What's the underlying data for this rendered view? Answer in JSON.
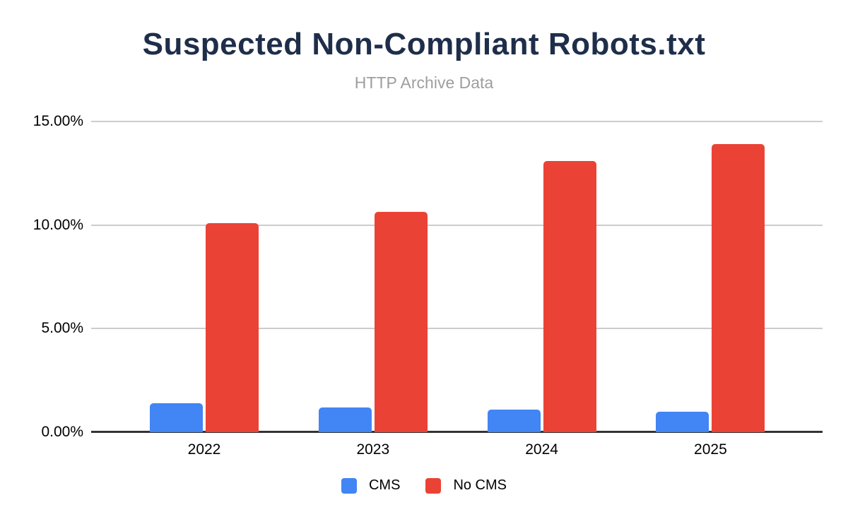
{
  "chart_data": {
    "type": "bar",
    "title": "Suspected Non-Compliant Robots.txt",
    "subtitle": "HTTP Archive Data",
    "categories": [
      "2022",
      "2023",
      "2024",
      "2025"
    ],
    "series": [
      {
        "name": "CMS",
        "color": "#4285F4",
        "values": [
          1.4,
          1.2,
          1.1,
          1.0
        ]
      },
      {
        "name": "No CMS",
        "color": "#EA4335",
        "values": [
          10.1,
          10.65,
          13.1,
          13.9
        ]
      }
    ],
    "ylabel": "",
    "xlabel": "",
    "ylim": [
      0,
      15
    ],
    "yticks": [
      {
        "value": 0,
        "label": "0.00%"
      },
      {
        "value": 5,
        "label": "5.00%"
      },
      {
        "value": 10,
        "label": "10.00%"
      },
      {
        "value": 15,
        "label": "15.00%"
      }
    ],
    "grid": true,
    "legend_position": "bottom",
    "colors": {
      "title": "#1e2e4a",
      "subtitle": "#9e9e9e",
      "gridline": "#cccccc",
      "axis_line": "#333333",
      "tick_label": "#000000"
    }
  }
}
